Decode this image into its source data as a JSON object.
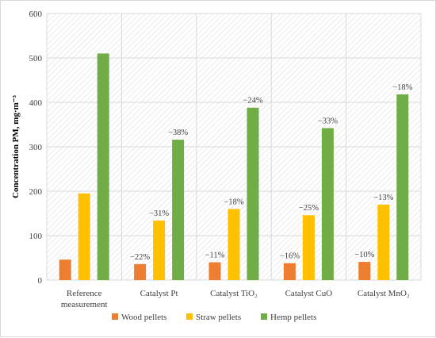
{
  "chart_data": {
    "type": "bar",
    "title": "",
    "xlabel": "",
    "ylabel": "Concentration PM, mg·m⁻³",
    "ylim": [
      0,
      600
    ],
    "yticks": [
      0,
      100,
      200,
      300,
      400,
      500,
      600
    ],
    "grid": true,
    "legend_position": "bottom",
    "categories": [
      [
        "Reference",
        "measurement"
      ],
      [
        "Catalyst Pt"
      ],
      [
        "Catalyst TiO₂"
      ],
      [
        "Catalyst CuO"
      ],
      [
        "Catalyst MnO₂"
      ]
    ],
    "series": [
      {
        "name": "Wood pellets",
        "color": "#ED7D31",
        "values": [
          46,
          36,
          40,
          38,
          41
        ],
        "labels": [
          "",
          "−22%",
          "−11%",
          "−16%",
          "−10%"
        ]
      },
      {
        "name": "Straw pellets",
        "color": "#FFC000",
        "values": [
          195,
          134,
          160,
          146,
          170
        ],
        "labels": [
          "",
          "−31%",
          "−18%",
          "−25%",
          "−13%"
        ]
      },
      {
        "name": "Hemp pellets",
        "color": "#70AD47",
        "values": [
          510,
          316,
          388,
          342,
          418
        ],
        "labels": [
          "",
          "−38%",
          "−24%",
          "−33%",
          "−18%"
        ]
      }
    ]
  }
}
